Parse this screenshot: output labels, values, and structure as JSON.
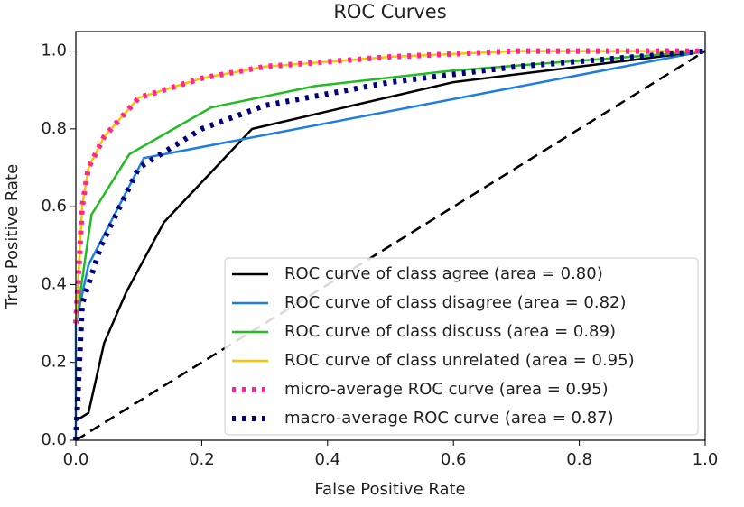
{
  "chart_data": {
    "type": "line",
    "title": "ROC Curves",
    "x_label": "False Positive Rate",
    "y_label": "True Positive Rate",
    "xlim": [
      0,
      1
    ],
    "ylim": [
      0,
      1.05
    ],
    "xticks": [
      {
        "value": 0,
        "label": "0.0"
      },
      0.2,
      0.4,
      0.6,
      0.8,
      {
        "value": 1,
        "label": "1.0"
      }
    ],
    "yticks": [
      {
        "value": 0,
        "label": "0.0"
      },
      0.2,
      0.4,
      0.6,
      0.8,
      {
        "value": 1,
        "label": "1.0"
      }
    ],
    "grid": false,
    "legend": "lower right",
    "diagonal": {
      "x": [
        0,
        1
      ],
      "values": [
        0,
        1
      ],
      "color": "#000000",
      "linestyle": "dashed"
    },
    "series": [
      {
        "name": "ROC curve of class agree (area = 0.80)",
        "color": "#000000",
        "linestyle": "solid",
        "x": [
          0,
          0.02,
          0.045,
          0.08,
          0.14,
          0.28,
          0.6,
          1
        ],
        "values": [
          0.05,
          0.07,
          0.25,
          0.38,
          0.56,
          0.8,
          0.92,
          1
        ]
      },
      {
        "name": "ROC curve of class disagree (area = 0.82)",
        "color": "#1e7ee0",
        "linestyle": "solid",
        "x": [
          0,
          0,
          0.02,
          0.108,
          1
        ],
        "values": [
          0,
          0.3,
          0.45,
          0.725,
          1
        ]
      },
      {
        "name": "ROC curve of class discuss (area = 0.89)",
        "color": "#22bb22",
        "linestyle": "solid",
        "x": [
          0,
          0.025,
          0.085,
          0.215,
          0.38,
          0.6,
          1
        ],
        "values": [
          0.3,
          0.58,
          0.735,
          0.855,
          0.91,
          0.95,
          1
        ]
      },
      {
        "name": "ROC curve of class unrelated (area = 0.95)",
        "color": "#ffc000",
        "linestyle": "solid",
        "x": [
          0,
          0.01,
          0.02,
          0.045,
          0.1,
          0.2,
          0.3,
          0.5,
          0.7,
          1
        ],
        "values": [
          0.3,
          0.6,
          0.7,
          0.78,
          0.88,
          0.93,
          0.96,
          0.985,
          1,
          1
        ]
      },
      {
        "name": "micro-average ROC curve (area = 0.95)",
        "color": "#ff2299",
        "linestyle": "dotted",
        "x": [
          0,
          0.01,
          0.02,
          0.045,
          0.1,
          0.2,
          0.3,
          0.5,
          0.7,
          1
        ],
        "values": [
          0.3,
          0.6,
          0.7,
          0.78,
          0.88,
          0.93,
          0.96,
          0.985,
          1,
          1
        ]
      },
      {
        "name": "macro-average ROC curve (area = 0.87)",
        "color": "#000080",
        "linestyle": "dotted",
        "x": [
          0,
          0.01,
          0.04,
          0.1,
          0.2,
          0.3,
          0.5,
          0.7,
          1
        ],
        "values": [
          0,
          0.35,
          0.5,
          0.7,
          0.8,
          0.86,
          0.92,
          0.96,
          1
        ]
      }
    ]
  }
}
